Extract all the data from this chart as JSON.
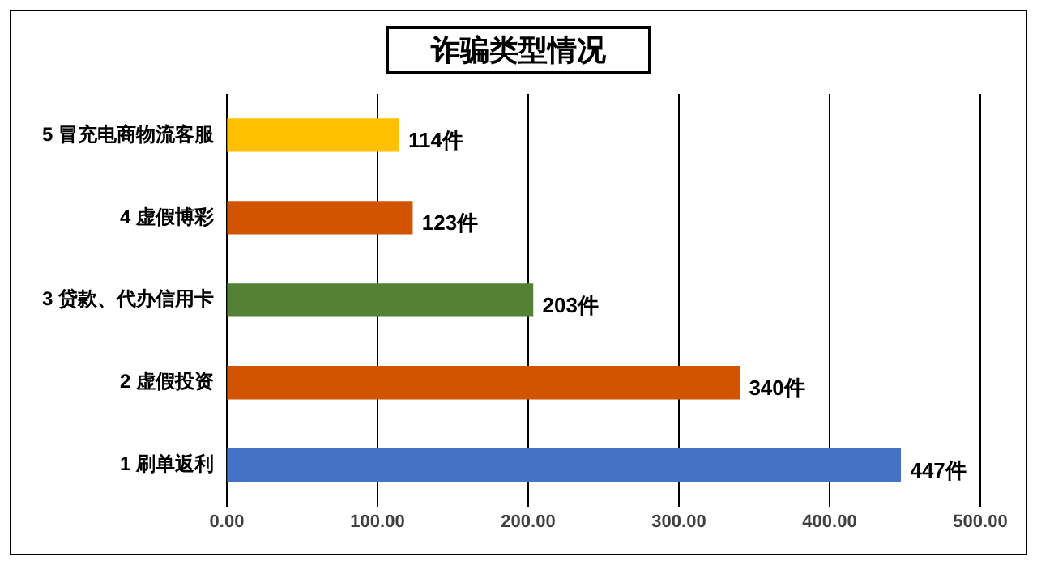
{
  "chart_data": {
    "type": "bar",
    "orientation": "horizontal",
    "title": "诈骗类型情况",
    "categories": [
      "5 冒充电商物流客服",
      "4 虚假博彩",
      "3 贷款、代办信用卡",
      "2 虚假投资",
      "1 刷单返利"
    ],
    "values": [
      114,
      123,
      203,
      340,
      447
    ],
    "colors": [
      "#ffc000",
      "#d35400",
      "#548235",
      "#d35400",
      "#4472c4"
    ],
    "value_labels": [
      "114件",
      "123件",
      "203件",
      "340件",
      "447件"
    ],
    "xlim": [
      0,
      500
    ],
    "xticks": [
      {
        "value": 0,
        "label": "0.00"
      },
      {
        "value": 100,
        "label": "100.00"
      },
      {
        "value": 200,
        "label": "200.00"
      },
      {
        "value": 300,
        "label": "300.00"
      },
      {
        "value": 400,
        "label": "400.00"
      },
      {
        "value": 500,
        "label": "500.00"
      }
    ],
    "grid": "x",
    "legend": false
  }
}
